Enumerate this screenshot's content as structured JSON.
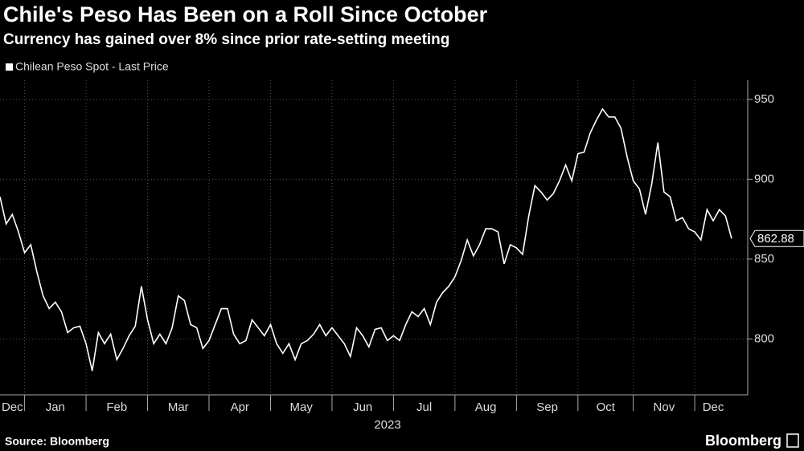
{
  "chart_data": {
    "type": "line",
    "title": "Chile's Peso Has Been on a Roll Since October",
    "subtitle": "Currency has gained over 8% since prior rate-setting meeting",
    "xlabel": "2023",
    "source": "Source: Bloomberg",
    "logo": "Bloomberg",
    "series": [
      {
        "name": "Chilean Peso Spot - Last Price",
        "color": "#ffffff",
        "values": [
          889,
          872,
          878,
          867,
          854,
          859,
          842,
          827,
          819,
          823,
          817,
          804,
          807,
          808,
          797,
          780,
          804,
          797,
          803,
          787,
          794,
          802,
          808,
          833,
          812,
          797,
          803,
          797,
          807,
          827,
          824,
          809,
          807,
          794,
          799,
          809,
          819,
          819,
          803,
          797,
          799,
          812,
          807,
          802,
          809,
          797,
          791,
          797,
          787,
          797,
          799,
          803,
          809,
          802,
          807,
          802,
          797,
          789,
          807,
          802,
          795,
          806,
          807,
          799,
          802,
          799,
          809,
          817,
          814,
          819,
          809,
          823,
          829,
          833,
          839,
          849,
          862,
          852,
          859,
          869,
          869,
          867,
          847,
          859,
          857,
          853,
          877,
          896,
          892,
          887,
          891,
          899,
          909,
          899,
          916,
          917,
          929,
          937,
          944,
          939,
          939,
          932,
          914,
          899,
          894,
          878,
          897,
          923,
          892,
          889,
          874,
          876,
          869,
          867,
          862,
          881,
          874,
          881,
          877,
          862.88
        ]
      }
    ],
    "xlim": [
      0,
      119
    ],
    "xticks": [
      {
        "value": 0,
        "label": "Dec"
      },
      {
        "value": 4,
        "label": "Jan"
      },
      {
        "value": 14,
        "label": "Feb"
      },
      {
        "value": 24,
        "label": "Mar"
      },
      {
        "value": 34,
        "label": "Apr"
      },
      {
        "value": 44,
        "label": "May"
      },
      {
        "value": 54,
        "label": "Jun"
      },
      {
        "value": 64,
        "label": "Jul"
      },
      {
        "value": 74,
        "label": "Aug"
      },
      {
        "value": 84,
        "label": "Sep"
      },
      {
        "value": 94,
        "label": "Oct"
      },
      {
        "value": 103,
        "label": "Nov"
      },
      {
        "value": 113,
        "label": "Dec"
      }
    ],
    "ylim": [
      765,
      962
    ],
    "yticks": [
      800,
      850,
      900,
      950
    ],
    "grid": true
  }
}
